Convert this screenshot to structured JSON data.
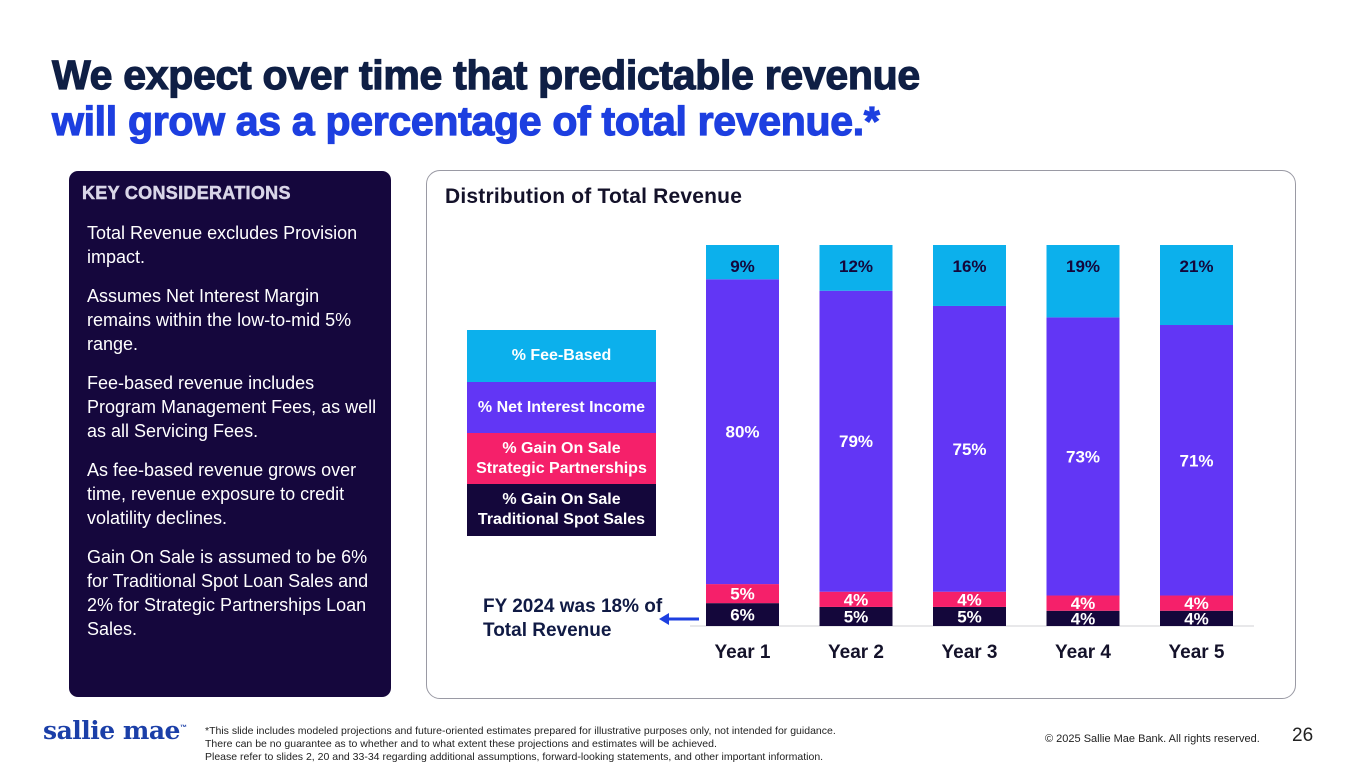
{
  "title": {
    "line1": "We expect over time that predictable revenue",
    "line2": "will grow as a percentage of total revenue.*"
  },
  "key_considerations": {
    "heading": "KEY CONSIDERATIONS",
    "items": [
      "Total Revenue excludes Provision impact.",
      "Assumes Net Interest Margin remains within the low-to-mid 5% range.",
      "Fee-based revenue includes Program Management Fees, as well as all Servicing Fees.",
      "As fee-based revenue grows over time, revenue exposure to credit volatility declines.",
      "Gain On Sale is assumed to be 6% for Traditional Spot Loan Sales and 2% for Strategic Partnerships Loan Sales."
    ]
  },
  "colors": {
    "fee_based": "#0cb0ec",
    "net_interest": "#6236f5",
    "gain_strategic": "#f5206a",
    "gain_traditional": "#14073b"
  },
  "chart_data": {
    "type": "bar",
    "stacked": true,
    "title": "Distribution of Total Revenue",
    "categories": [
      "Year 1",
      "Year 2",
      "Year 3",
      "Year 4",
      "Year 5"
    ],
    "series": [
      {
        "name": "% Gain On Sale Traditional Spot Sales",
        "color": "#14073b",
        "values": [
          6,
          5,
          5,
          4,
          4
        ],
        "labels": [
          "6%",
          "5%",
          "5%",
          "4%",
          "4%"
        ]
      },
      {
        "name": "% Gain On Sale Strategic Partnerships",
        "color": "#f5206a",
        "values": [
          5,
          4,
          4,
          4,
          4
        ],
        "labels": [
          "5%",
          "4%",
          "4%",
          "4%",
          "4%"
        ]
      },
      {
        "name": "% Net Interest Income",
        "color": "#6236f5",
        "values": [
          80,
          79,
          75,
          73,
          71
        ],
        "labels": [
          "80%",
          "79%",
          "75%",
          "73%",
          "71%"
        ]
      },
      {
        "name": "% Fee-Based",
        "color": "#0cb0ec",
        "values": [
          9,
          12,
          16,
          19,
          21
        ],
        "labels": [
          "9%",
          "12%",
          "16%",
          "19%",
          "21%"
        ]
      }
    ],
    "ylim": [
      0,
      100
    ],
    "legend": [
      {
        "label": "% Fee-Based"
      },
      {
        "label": "% Net Interest Income"
      },
      {
        "label": "% Gain On Sale Strategic Partnerships"
      },
      {
        "label": "% Gain On Sale Traditional Spot Sales"
      }
    ],
    "annotation": "FY 2024 was 18% of Total Revenue"
  },
  "footer": {
    "logo": "sallie mae",
    "trademark": "™",
    "footnote": [
      "*This slide includes modeled projections and future-oriented estimates prepared for illustrative purposes only, not intended for guidance.",
      "There can be no guarantee as to whether and to what extent these projections and estimates will be achieved.",
      "Please refer to slides 2, 20 and 33-34 regarding additional assumptions, forward-looking statements, and other important information."
    ],
    "copyright": "© 2025 Sallie Mae Bank. All rights reserved.",
    "page_number": "26"
  }
}
